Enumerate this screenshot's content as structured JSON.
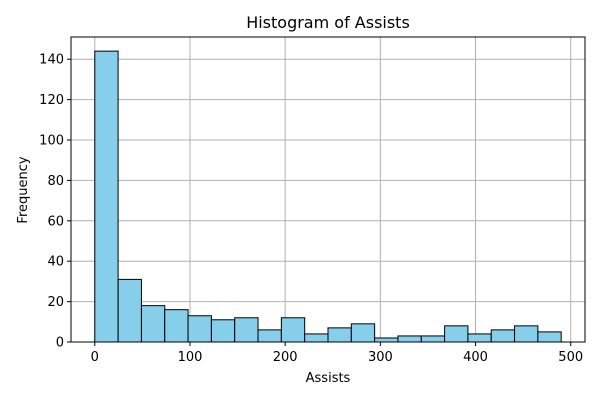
{
  "chart_data": {
    "type": "bar",
    "subtype": "histogram",
    "title": "Histogram of Assists",
    "xlabel": "Assists",
    "ylabel": "Frequency",
    "xlim": [
      -25,
      515
    ],
    "ylim": [
      0,
      151
    ],
    "xticks": [
      0,
      100,
      200,
      300,
      400,
      500
    ],
    "yticks": [
      0,
      20,
      40,
      60,
      80,
      100,
      120,
      140
    ],
    "grid": true,
    "bar_color": "#87CEEB",
    "edge_color": "#000000",
    "bin_edges": [
      0,
      24.5,
      49,
      73.5,
      98,
      122.5,
      147,
      171.5,
      196,
      220.5,
      245,
      269.5,
      294,
      318.5,
      343,
      367.5,
      392,
      416.5,
      441,
      465.5,
      490
    ],
    "values": [
      144,
      31,
      18,
      16,
      13,
      11,
      12,
      6,
      12,
      4,
      7,
      9,
      2,
      3,
      3,
      8,
      4,
      6,
      8,
      5
    ]
  }
}
